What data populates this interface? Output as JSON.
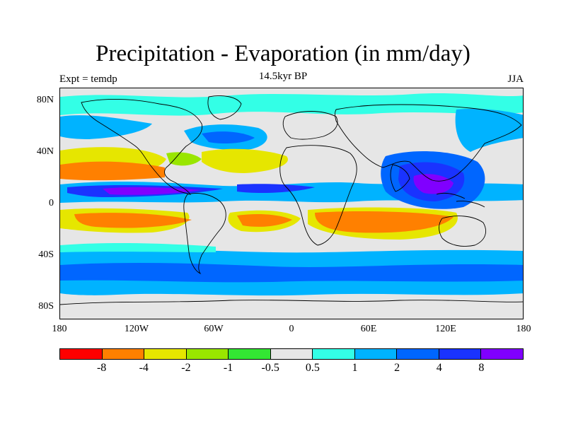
{
  "title": "Precipitation - Evaporation (in mm/day)",
  "subtitle": "14.5kyr BP",
  "left_label": "Expt = temdp",
  "right_label": "JJA",
  "lat_labels": [
    "80N",
    "40N",
    "0",
    "40S",
    "80S"
  ],
  "lon_labels": [
    "180",
    "120W",
    "60W",
    "0",
    "60E",
    "120E",
    "180"
  ],
  "colorbar": {
    "colors": [
      "#ff0000",
      "#ff8000",
      "#e6e600",
      "#99e600",
      "#33e633",
      "#e6e6e6",
      "#33ffe6",
      "#00b3ff",
      "#0066ff",
      "#1a33ff",
      "#8000ff"
    ],
    "labels": [
      "-8",
      "-4",
      "-2",
      "-1",
      "-0.5",
      "0.5",
      "1",
      "2",
      "4",
      "8"
    ]
  }
}
